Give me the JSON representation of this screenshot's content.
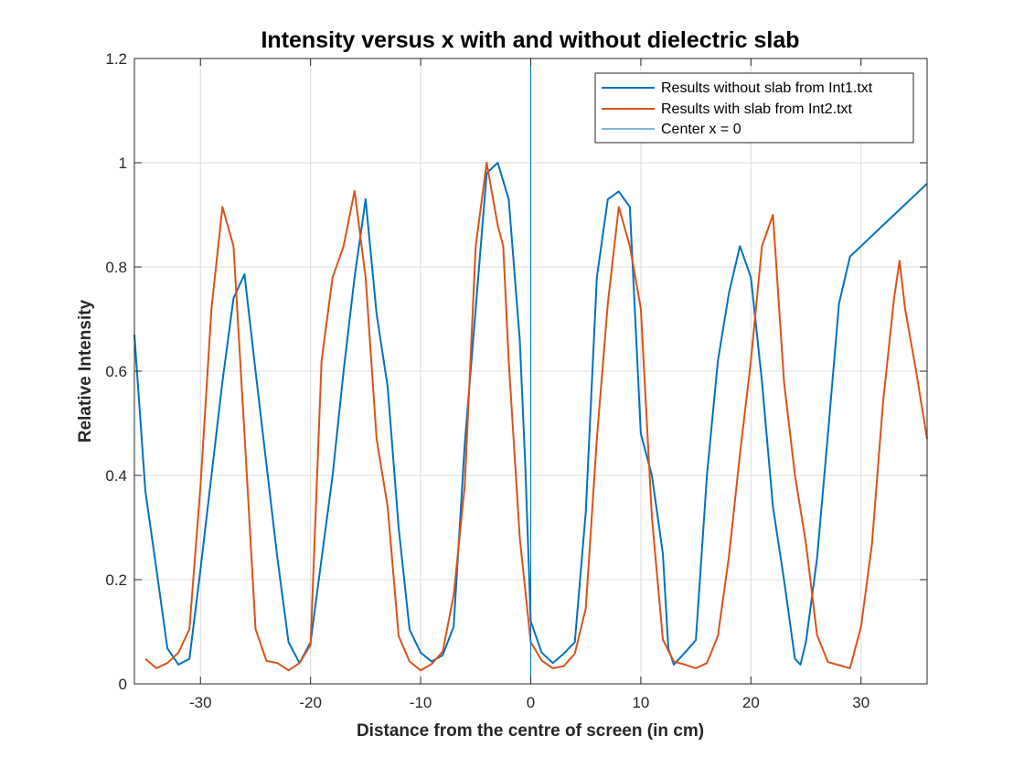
{
  "chart_data": {
    "type": "line",
    "title": "Intensity versus x with and without dielectric slab",
    "xlabel": "Distance from the centre of screen (in cm)",
    "ylabel": "Relative Intensity",
    "xlim": [
      -36,
      36
    ],
    "ylim": [
      0,
      1.2
    ],
    "xticks": [
      -30,
      -20,
      -10,
      0,
      10,
      20,
      30
    ],
    "yticks": [
      0,
      0.2,
      0.4,
      0.6,
      0.8,
      1,
      1.2
    ],
    "ytick_labels": [
      "0",
      "0.2",
      "0.4",
      "0.6",
      "0.8",
      "1",
      "1.2"
    ],
    "grid": true,
    "legend_position": "top-right",
    "series": [
      {
        "name": "Results without slab from Int1.txt",
        "color": "#0072BD",
        "style": "solid",
        "x": [
          -36,
          -35,
          -34,
          -33,
          -32,
          -31,
          -30,
          -29,
          -28,
          -27,
          -26,
          -25,
          -24,
          -23,
          -22,
          -21,
          -20,
          -19,
          -18,
          -17,
          -16,
          -15,
          -14,
          -13,
          -12,
          -11,
          -10,
          -9,
          -8,
          -7,
          -6,
          -5,
          -4,
          -3,
          -2,
          -1,
          -0.5,
          0,
          1,
          2,
          3,
          4,
          5,
          6,
          7,
          8,
          9,
          10,
          11,
          12,
          12.5,
          13,
          14,
          15,
          16,
          17,
          18,
          19,
          20,
          21,
          22,
          23,
          24,
          24.5,
          25,
          26,
          27,
          28,
          29,
          30,
          31,
          32,
          33,
          34,
          35,
          36
        ],
        "y": [
          0.67,
          0.37,
          0.22,
          0.068,
          0.037,
          0.048,
          0.22,
          0.4,
          0.58,
          0.74,
          0.786,
          0.6,
          0.42,
          0.24,
          0.08,
          0.04,
          0.08,
          0.24,
          0.4,
          0.6,
          0.78,
          0.93,
          0.71,
          0.57,
          0.3,
          0.104,
          0.06,
          0.043,
          0.055,
          0.11,
          0.46,
          0.72,
          0.98,
          1.0,
          0.93,
          0.66,
          0.42,
          0.12,
          0.06,
          0.04,
          0.058,
          0.08,
          0.33,
          0.78,
          0.93,
          0.945,
          0.915,
          0.48,
          0.4,
          0.25,
          0.068,
          0.037,
          0.06,
          0.084,
          0.4,
          0.62,
          0.75,
          0.84,
          0.78,
          0.58,
          0.34,
          0.2,
          0.048,
          0.037,
          0.08,
          0.24,
          0.48,
          0.73,
          0.82,
          0.84,
          0.86,
          0.88,
          0.9,
          0.92,
          0.94,
          0.96
        ],
        "note": ""
      },
      {
        "name": "Results with slab from Int2.txt",
        "color": "#D95319",
        "style": "solid",
        "x": [
          -35,
          -34,
          -33,
          -32,
          -31,
          -30,
          -29,
          -28,
          -27,
          -26,
          -25,
          -24,
          -23,
          -22,
          -21,
          -20,
          -19,
          -18,
          -17,
          -16,
          -15,
          -14,
          -13,
          -12,
          -11,
          -10,
          -9,
          -8,
          -7,
          -6,
          -5,
          -4,
          -3,
          -2.5,
          -2,
          -1,
          0,
          1,
          2,
          3,
          4,
          5,
          6,
          7,
          8,
          9,
          10,
          11,
          12,
          13,
          14,
          15,
          16,
          17,
          18,
          19,
          20,
          21,
          22,
          23,
          24,
          25,
          26,
          27,
          28,
          29,
          30,
          31,
          32,
          33,
          33.5,
          34,
          35,
          36
        ],
        "y": [
          0.048,
          0.03,
          0.04,
          0.06,
          0.105,
          0.38,
          0.72,
          0.915,
          0.84,
          0.48,
          0.105,
          0.044,
          0.04,
          0.026,
          0.04,
          0.075,
          0.62,
          0.78,
          0.84,
          0.946,
          0.78,
          0.47,
          0.34,
          0.092,
          0.043,
          0.026,
          0.038,
          0.062,
          0.17,
          0.38,
          0.84,
          1.0,
          0.88,
          0.84,
          0.62,
          0.28,
          0.08,
          0.045,
          0.03,
          0.034,
          0.058,
          0.145,
          0.47,
          0.73,
          0.915,
          0.84,
          0.72,
          0.32,
          0.085,
          0.043,
          0.037,
          0.03,
          0.04,
          0.092,
          0.245,
          0.44,
          0.62,
          0.84,
          0.9,
          0.58,
          0.4,
          0.27,
          0.094,
          0.042,
          0.036,
          0.03,
          0.11,
          0.27,
          0.54,
          0.74,
          0.812,
          0.72,
          0.6,
          0.47
        ],
        "note": ""
      },
      {
        "name": "Center x = 0",
        "color": "#0072BD",
        "style": "vertical-line",
        "x_value": 0
      }
    ]
  }
}
